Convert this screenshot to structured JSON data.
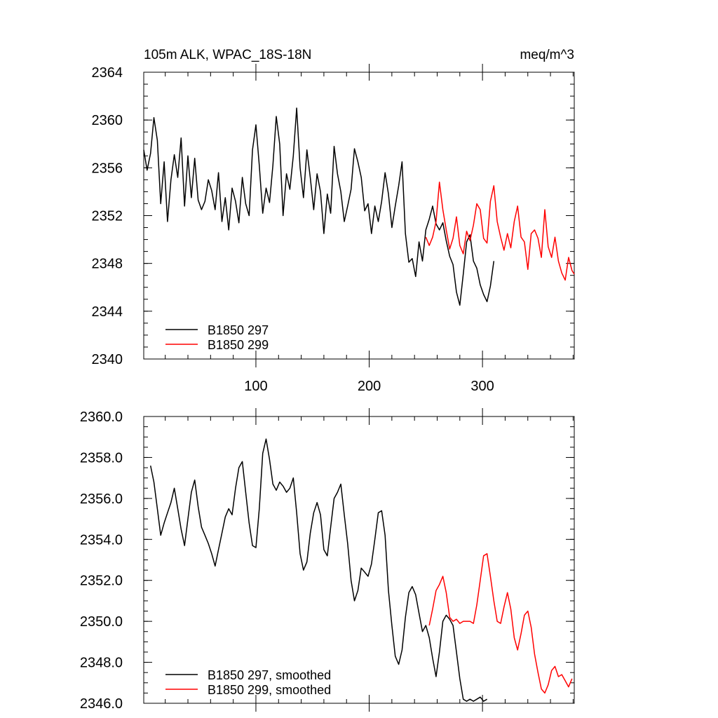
{
  "chart_data": [
    {
      "type": "line",
      "title_left": "105m ALK, WPAC_18S-18N",
      "title_right": "meq/m^3",
      "xlabel": "",
      "ylabel": "",
      "xlim": [
        1,
        381
      ],
      "ylim": [
        2340,
        2364
      ],
      "xticks": [
        100,
        200,
        300
      ],
      "xtick_labels": [
        "100",
        "200",
        "300"
      ],
      "yticks": [
        2340,
        2344,
        2348,
        2352,
        2356,
        2360,
        2364
      ],
      "ytick_labels": [
        "2340",
        "2344",
        "2348",
        "2352",
        "2356",
        "2360",
        "2364"
      ],
      "legend_position": "bottom-left",
      "series": [
        {
          "name": "B1850 297",
          "color": "#000000",
          "x": [
            1,
            4,
            7,
            10,
            13,
            16,
            19,
            22,
            25,
            28,
            31,
            34,
            37,
            40,
            43,
            46,
            49,
            52,
            55,
            58,
            61,
            64,
            67,
            70,
            73,
            76,
            79,
            82,
            85,
            88,
            91,
            94,
            97,
            100,
            103,
            106,
            109,
            112,
            115,
            118,
            121,
            124,
            127,
            130,
            133,
            136,
            139,
            142,
            145,
            148,
            151,
            154,
            157,
            160,
            163,
            166,
            169,
            172,
            175,
            178,
            181,
            184,
            187,
            190,
            193,
            196,
            199,
            202,
            205,
            208,
            211,
            214,
            217,
            220,
            223,
            226,
            229,
            232,
            235,
            238,
            241,
            244,
            247,
            250,
            253,
            256,
            259,
            262,
            265,
            268,
            271,
            274,
            277,
            280,
            283,
            286,
            289,
            292,
            295,
            298,
            301,
            304,
            307,
            310
          ],
          "values": [
            2357.5,
            2355.8,
            2357.2,
            2360.2,
            2358.3,
            2353,
            2356.5,
            2351.5,
            2355,
            2357.1,
            2355.2,
            2358.5,
            2352.8,
            2357,
            2353.5,
            2356.8,
            2353.3,
            2352.5,
            2353.2,
            2355,
            2354.1,
            2352.5,
            2355.6,
            2351.5,
            2353.5,
            2350.8,
            2354.3,
            2353.2,
            2351.4,
            2355.2,
            2353,
            2352,
            2357.5,
            2359.6,
            2356.2,
            2352.2,
            2354.3,
            2353.1,
            2356.2,
            2360.3,
            2358,
            2352,
            2355.5,
            2354.2,
            2357,
            2361,
            2356,
            2353.5,
            2357.5,
            2355.2,
            2352.5,
            2355.5,
            2354,
            2350.5,
            2353.8,
            2352.2,
            2357.8,
            2355.5,
            2354,
            2351.5,
            2352.8,
            2354.2,
            2357.6,
            2356.5,
            2355.2,
            2352.4,
            2353,
            2350.5,
            2352.8,
            2351.5,
            2353.2,
            2355.6,
            2353.8,
            2351,
            2352.8,
            2354.5,
            2356.5,
            2350.5,
            2348.1,
            2348.4,
            2346.9,
            2349.8,
            2348.2,
            2350.8,
            2351.7,
            2352.8,
            2351.3,
            2350.8,
            2351.4,
            2349.9,
            2348.6,
            2347.9,
            2345.6,
            2344.5,
            2347.1,
            2349.8,
            2350.4,
            2348.2,
            2347.6,
            2346.2,
            2345.4,
            2344.8,
            2346.1,
            2348.2
          ]
        },
        {
          "name": "B1850 299",
          "color": "#ff0000",
          "x": [
            250,
            253,
            256,
            259,
            262,
            265,
            268,
            271,
            274,
            277,
            280,
            283,
            286,
            289,
            292,
            295,
            298,
            301,
            304,
            307,
            310,
            313,
            316,
            319,
            322,
            325,
            328,
            331,
            334,
            337,
            340,
            343,
            346,
            349,
            352,
            355,
            358,
            361,
            364,
            367,
            370,
            373,
            376,
            379,
            381
          ],
          "values": [
            2350.2,
            2349.5,
            2350.2,
            2351.5,
            2354.8,
            2352.5,
            2350.8,
            2349.2,
            2350.1,
            2351.9,
            2349.5,
            2348.8,
            2350.7,
            2349.9,
            2351.2,
            2353,
            2352.5,
            2350.1,
            2349.7,
            2353.2,
            2354.5,
            2351.5,
            2350.2,
            2349.1,
            2350.5,
            2349.3,
            2351.5,
            2352.8,
            2350.2,
            2349.8,
            2347.5,
            2350.5,
            2350.8,
            2350.1,
            2348.5,
            2352.5,
            2349.4,
            2348.5,
            2350.2,
            2348.2,
            2347.2,
            2346.6,
            2348.5,
            2347.4,
            2347.1
          ]
        }
      ]
    },
    {
      "type": "line",
      "xlim": [
        1,
        381
      ],
      "ylim": [
        2346.0,
        2360.0
      ],
      "xticks": [
        100,
        200,
        300
      ],
      "yticks": [
        2346.0,
        2348.0,
        2350.0,
        2352.0,
        2354.0,
        2356.0,
        2358.0,
        2360.0
      ],
      "ytick_labels": [
        "2346.0",
        "2348.0",
        "2350.0",
        "2352.0",
        "2354.0",
        "2356.0",
        "2358.0",
        "2360.0"
      ],
      "legend_position": "bottom-left",
      "series": [
        {
          "name": "B1850 297, smoothed",
          "color": "#000000",
          "x": [
            7,
            10,
            13,
            16,
            19,
            22,
            25,
            28,
            31,
            34,
            37,
            40,
            43,
            46,
            49,
            52,
            55,
            58,
            61,
            64,
            67,
            70,
            73,
            76,
            79,
            82,
            85,
            88,
            91,
            94,
            97,
            100,
            103,
            106,
            109,
            112,
            115,
            118,
            121,
            124,
            127,
            130,
            133,
            136,
            139,
            142,
            145,
            148,
            151,
            154,
            157,
            160,
            163,
            166,
            169,
            172,
            175,
            178,
            181,
            184,
            187,
            190,
            193,
            196,
            199,
            202,
            205,
            208,
            211,
            214,
            217,
            220,
            223,
            226,
            229,
            232,
            235,
            238,
            241,
            244,
            247,
            250,
            253,
            256,
            259,
            262,
            265,
            268,
            271,
            274,
            277,
            280,
            283,
            286,
            289,
            292,
            295,
            298,
            301,
            304
          ],
          "values": [
            2357.6,
            2356.8,
            2355.5,
            2354.2,
            2354.8,
            2355.3,
            2355.8,
            2356.5,
            2355.5,
            2354.5,
            2353.7,
            2355,
            2356.3,
            2356.9,
            2355.6,
            2354.6,
            2354.2,
            2353.8,
            2353.3,
            2352.7,
            2353.5,
            2354.3,
            2355.1,
            2355.5,
            2355.2,
            2356.5,
            2357.5,
            2357.8,
            2356.3,
            2354.8,
            2353.7,
            2353.6,
            2355.5,
            2358.2,
            2358.9,
            2357.9,
            2356.7,
            2356.4,
            2356.8,
            2356.6,
            2356.3,
            2356.5,
            2357,
            2355.3,
            2353.3,
            2352.5,
            2352.9,
            2354.3,
            2355.3,
            2355.8,
            2355.2,
            2353.5,
            2353.2,
            2354.6,
            2356,
            2356.3,
            2356.7,
            2355.2,
            2353.8,
            2352,
            2351,
            2351.5,
            2352.6,
            2352.4,
            2352.2,
            2352.8,
            2354,
            2355.3,
            2355.4,
            2354.2,
            2351.5,
            2349.8,
            2348.3,
            2347.9,
            2348.6,
            2350.2,
            2351.4,
            2351.7,
            2351.3,
            2350.4,
            2349.5,
            2349.8,
            2349.2,
            2348.2,
            2347.3,
            2348.5,
            2350,
            2350.3,
            2350.1,
            2349.8,
            2348.5,
            2347.2,
            2346.2,
            2346.1,
            2346.2,
            2346.1,
            2346.2,
            2346.3,
            2346.1,
            2346.2
          ]
        },
        {
          "name": "B1850 299, smoothed",
          "color": "#ff0000",
          "x": [
            253,
            256,
            259,
            262,
            265,
            268,
            271,
            274,
            277,
            280,
            283,
            286,
            289,
            292,
            295,
            298,
            301,
            304,
            307,
            310,
            313,
            316,
            319,
            322,
            325,
            328,
            331,
            334,
            337,
            340,
            343,
            346,
            349,
            352,
            355,
            358,
            361,
            364,
            367,
            370,
            373,
            376,
            379
          ],
          "values": [
            2349.8,
            2350.6,
            2351.5,
            2351.8,
            2352.2,
            2351.4,
            2350.2,
            2350,
            2350.1,
            2349.9,
            2350,
            2350,
            2350,
            2349.9,
            2350.8,
            2352,
            2353.2,
            2353.3,
            2352.2,
            2351,
            2350,
            2349.9,
            2350.7,
            2351.4,
            2350.6,
            2349.2,
            2348.6,
            2349.4,
            2350.3,
            2350.5,
            2349.7,
            2348.4,
            2347.5,
            2346.7,
            2346.5,
            2346.9,
            2347.6,
            2347.8,
            2347.3,
            2347.4,
            2347.1,
            2346.8,
            2347.2
          ]
        }
      ]
    }
  ]
}
